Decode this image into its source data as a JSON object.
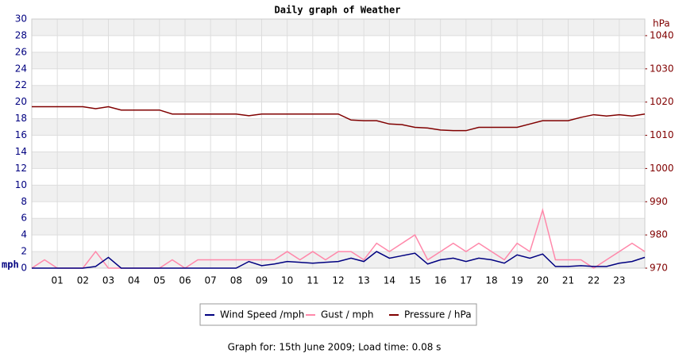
{
  "chart_data": {
    "type": "line",
    "title": "Daily graph of Weather",
    "y_label": "mph",
    "y2_label": "hPa",
    "footer": "Graph for: 15th June 2009; Load time: 0.08 s",
    "x": [
      0,
      0.5,
      1,
      1.5,
      2,
      2.5,
      3,
      3.5,
      4,
      4.5,
      5,
      5.5,
      6,
      6.5,
      7,
      7.5,
      8,
      8.5,
      9,
      9.5,
      10,
      10.5,
      11,
      11.5,
      12,
      12.5,
      13,
      13.5,
      14,
      14.5,
      15,
      15.5,
      16,
      16.5,
      17,
      17.5,
      18,
      18.5,
      19,
      19.5,
      20,
      20.5,
      21,
      21.5,
      22,
      22.5,
      23,
      23.5,
      24
    ],
    "xlim": [
      0,
      24
    ],
    "xticks": [
      {
        "value": 1,
        "label": "01"
      },
      {
        "value": 2,
        "label": "02"
      },
      {
        "value": 3,
        "label": "03"
      },
      {
        "value": 4,
        "label": "04"
      },
      {
        "value": 5,
        "label": "05"
      },
      {
        "value": 6,
        "label": "06"
      },
      {
        "value": 7,
        "label": "07"
      },
      {
        "value": 8,
        "label": "08"
      },
      {
        "value": 9,
        "label": "09"
      },
      {
        "value": 10,
        "label": "10"
      },
      {
        "value": 11,
        "label": "11"
      },
      {
        "value": 12,
        "label": "12"
      },
      {
        "value": 13,
        "label": "13"
      },
      {
        "value": 14,
        "label": "14"
      },
      {
        "value": 15,
        "label": "15"
      },
      {
        "value": 16,
        "label": "16"
      },
      {
        "value": 17,
        "label": "17"
      },
      {
        "value": 18,
        "label": "18"
      },
      {
        "value": 19,
        "label": "19"
      },
      {
        "value": 20,
        "label": "20"
      },
      {
        "value": 21,
        "label": "21"
      },
      {
        "value": 22,
        "label": "22"
      },
      {
        "value": 23,
        "label": "23"
      }
    ],
    "ylim": [
      0,
      30
    ],
    "yticks": [
      0,
      2,
      4,
      6,
      8,
      10,
      12,
      14,
      16,
      18,
      20,
      22,
      24,
      26,
      28,
      30
    ],
    "y2lim": [
      970,
      1045
    ],
    "y2ticks": [
      970,
      980,
      990,
      1000,
      1010,
      1020,
      1030,
      1040
    ],
    "grid": true,
    "series": [
      {
        "name": "Wind Speed /mph",
        "color": "#000080",
        "values": [
          0,
          0,
          0,
          0,
          0,
          0.2,
          1.3,
          0,
          0,
          0,
          0,
          0,
          0,
          0,
          0,
          0,
          0,
          0.8,
          0.3,
          0.5,
          0.8,
          0.7,
          0.6,
          0.7,
          0.8,
          1.2,
          0.8,
          2,
          1.2,
          1.5,
          1.8,
          0.5,
          1,
          1.2,
          0.8,
          1.2,
          1,
          0.6,
          1.6,
          1.2,
          1.7,
          0.2,
          0.2,
          0.3,
          0.2,
          0.2,
          0.6,
          0.8,
          1.3
        ]
      },
      {
        "name": "Gust / mph",
        "color": "#ff88aa",
        "values": [
          0,
          1,
          0,
          0,
          0,
          2,
          0,
          0,
          0,
          0,
          0,
          1,
          0,
          1,
          1,
          1,
          1,
          1,
          1,
          1,
          2,
          1,
          2,
          1,
          2,
          2,
          1,
          3,
          2,
          3,
          4,
          1,
          2,
          3,
          2,
          3,
          2,
          1,
          3,
          2,
          7,
          1,
          1,
          1,
          0,
          1,
          2,
          3,
          2
        ]
      },
      {
        "name": "Pressure / hPa",
        "color": "#800000",
        "axis": "y2",
        "values": [
          1018.6,
          1018.6,
          1018.6,
          1018.6,
          1018.6,
          1018,
          1018.6,
          1017.6,
          1017.6,
          1017.6,
          1017.6,
          1016.4,
          1016.4,
          1016.4,
          1016.4,
          1016.4,
          1016.4,
          1015.9,
          1016.4,
          1016.4,
          1016.4,
          1016.4,
          1016.4,
          1016.4,
          1016.4,
          1014.6,
          1014.4,
          1014.4,
          1013.4,
          1013.2,
          1012.4,
          1012.2,
          1011.6,
          1011.4,
          1011.4,
          1012.4,
          1012.4,
          1012.4,
          1012.4,
          1013.4,
          1014.4,
          1014.4,
          1014.4,
          1015.4,
          1016.2,
          1015.8,
          1016.2,
          1015.8,
          1016.4
        ]
      }
    ]
  }
}
